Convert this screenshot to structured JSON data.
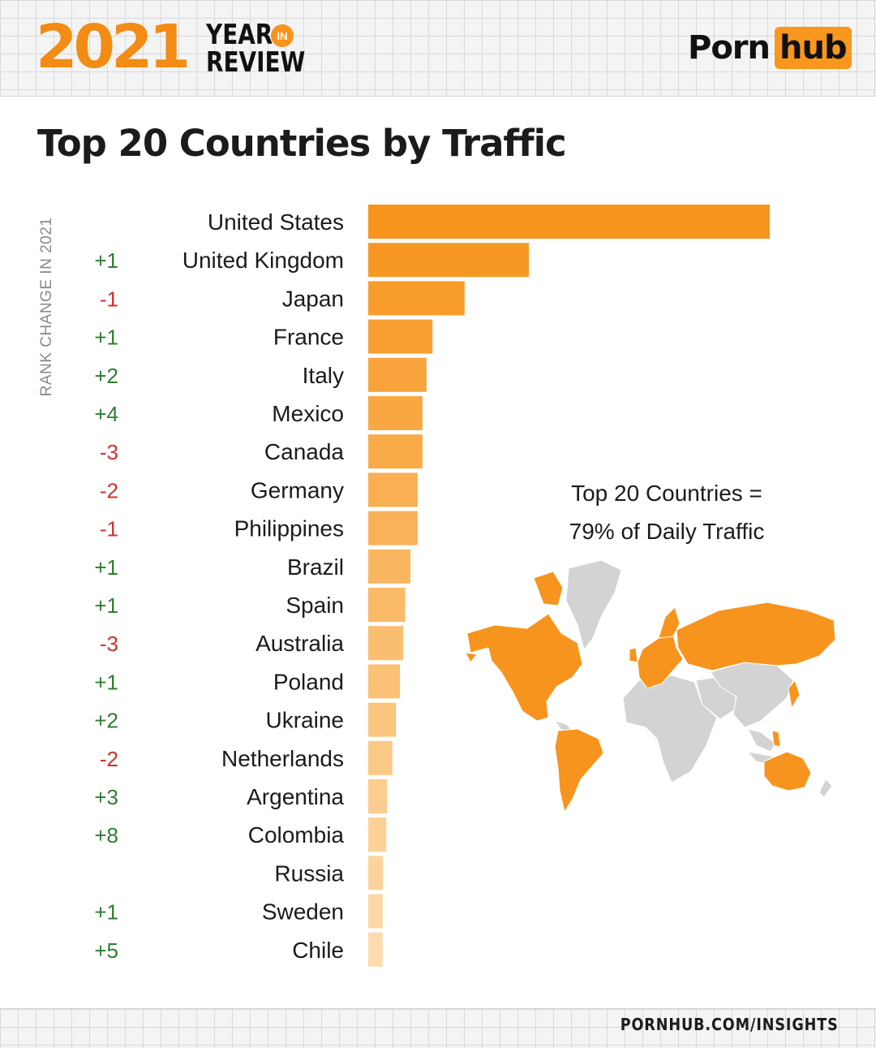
{
  "header": {
    "year": "2021",
    "year_word": "YEAR",
    "in_word": "IN",
    "review_word": "REVIEW",
    "brand_first": "Porn",
    "brand_second": "hub"
  },
  "colors": {
    "accent": "#f7941d",
    "positive": "#2e7d32",
    "negative": "#d32f2f",
    "map_gray": "#d3d3d3"
  },
  "chart_data": {
    "type": "bar",
    "orientation": "horizontal",
    "title": "Top 20 Countries by Traffic",
    "rank_axis_label": "RANK CHANGE IN 2021",
    "categories": [
      "United States",
      "United Kingdom",
      "Japan",
      "France",
      "Italy",
      "Mexico",
      "Canada",
      "Germany",
      "Philippines",
      "Brazil",
      "Spain",
      "Australia",
      "Poland",
      "Ukraine",
      "Netherlands",
      "Argentina",
      "Colombia",
      "Russia",
      "Sweden",
      "Chile"
    ],
    "values": [
      100,
      40,
      24,
      16,
      14.5,
      13.5,
      13.5,
      12.3,
      12.3,
      10.5,
      9.2,
      8.7,
      7.9,
      6.9,
      6.0,
      4.7,
      4.5,
      3.7,
      3.6,
      3.6
    ],
    "rank_changes": [
      "",
      "+1",
      "-1",
      "+1",
      "+2",
      "+4",
      "-3",
      "-2",
      "-1",
      "+1",
      "+1",
      "-3",
      "+1",
      "+2",
      "-2",
      "+3",
      "+8",
      "",
      "+1",
      "+5"
    ],
    "annotation_lines": [
      "Top 20 Countries =",
      "79% of Daily Traffic"
    ],
    "highlighted_map_regions": [
      "North America",
      "South America",
      "Europe",
      "Russia",
      "Japan",
      "Philippines",
      "Australia"
    ]
  },
  "footer": {
    "url": "PORNHUB.COM/INSIGHTS"
  }
}
